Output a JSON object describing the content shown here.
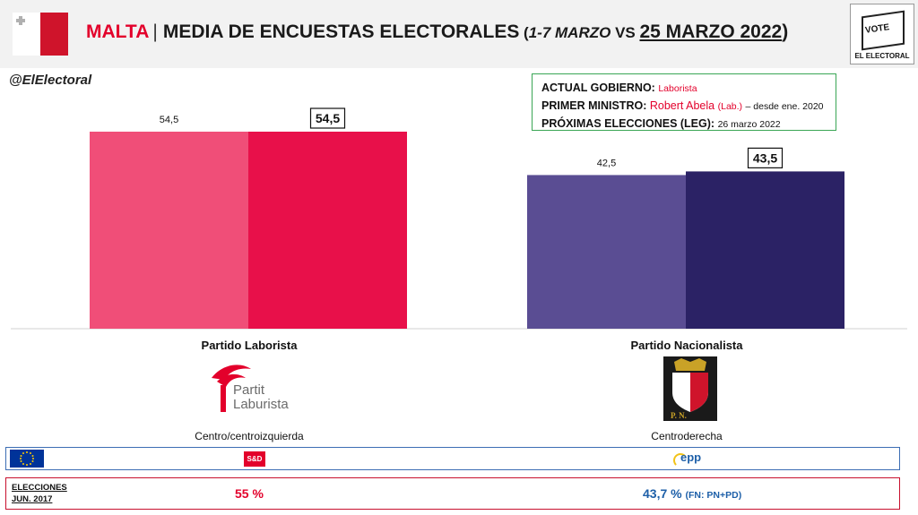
{
  "header": {
    "country": "MALTA",
    "separator": "|",
    "title_main": "MEDIA DE ENCUESTAS ELECTORALES",
    "title_open": " (",
    "title_period_old": "1-7 MARZO",
    "title_vs": " VS ",
    "title_period_new": "25 MARZO 2022",
    "title_close": ")"
  },
  "logo": {
    "vote_text": "VOTE",
    "name": "EL ELECTORAL"
  },
  "handle": "@ElElectoral",
  "info": {
    "gov_label": "ACTUAL GOBIERNO:",
    "gov_value": "Laborista",
    "pm_label": "PRIMER MINISTRO:",
    "pm_value": "Robert Abela",
    "pm_party": "(Lab.)",
    "pm_since": "– desde ene. 2020",
    "next_label": "PRÓXIMAS ELECCIONES (LEG):",
    "next_value": "26 marzo 2022"
  },
  "chart_data": {
    "type": "bar",
    "categories": [
      "Partido Laborista",
      "Partido Nacionalista"
    ],
    "series": [
      {
        "values": [
          54.5,
          42.5
        ],
        "colors": [
          "#f04e78",
          "#5a4d93"
        ]
      },
      {
        "values": [
          54.5,
          43.5
        ],
        "colors": [
          "#e8104a",
          "#2b2265"
        ]
      }
    ],
    "value_labels_old": [
      "54,5",
      "42,5"
    ],
    "value_labels_new": [
      "54,5",
      "43,5"
    ],
    "ylim": [
      0,
      60
    ]
  },
  "parties": [
    {
      "name": "Partido Laborista",
      "ideology": "Centro/centroizquierda",
      "logo_line1": "Partit",
      "logo_line2": "Laburista",
      "group": "S&D",
      "election_result": "55 %"
    },
    {
      "name": "Partido Nacionalista",
      "ideology": "Centroderecha",
      "logo_letters": "P.  N.",
      "group": "epp",
      "election_result": "43,7 %",
      "election_note": "(FN: PN+PD)"
    }
  ],
  "elections_label_1": "ELECCIONES",
  "elections_label_2": "JUN. 2017"
}
